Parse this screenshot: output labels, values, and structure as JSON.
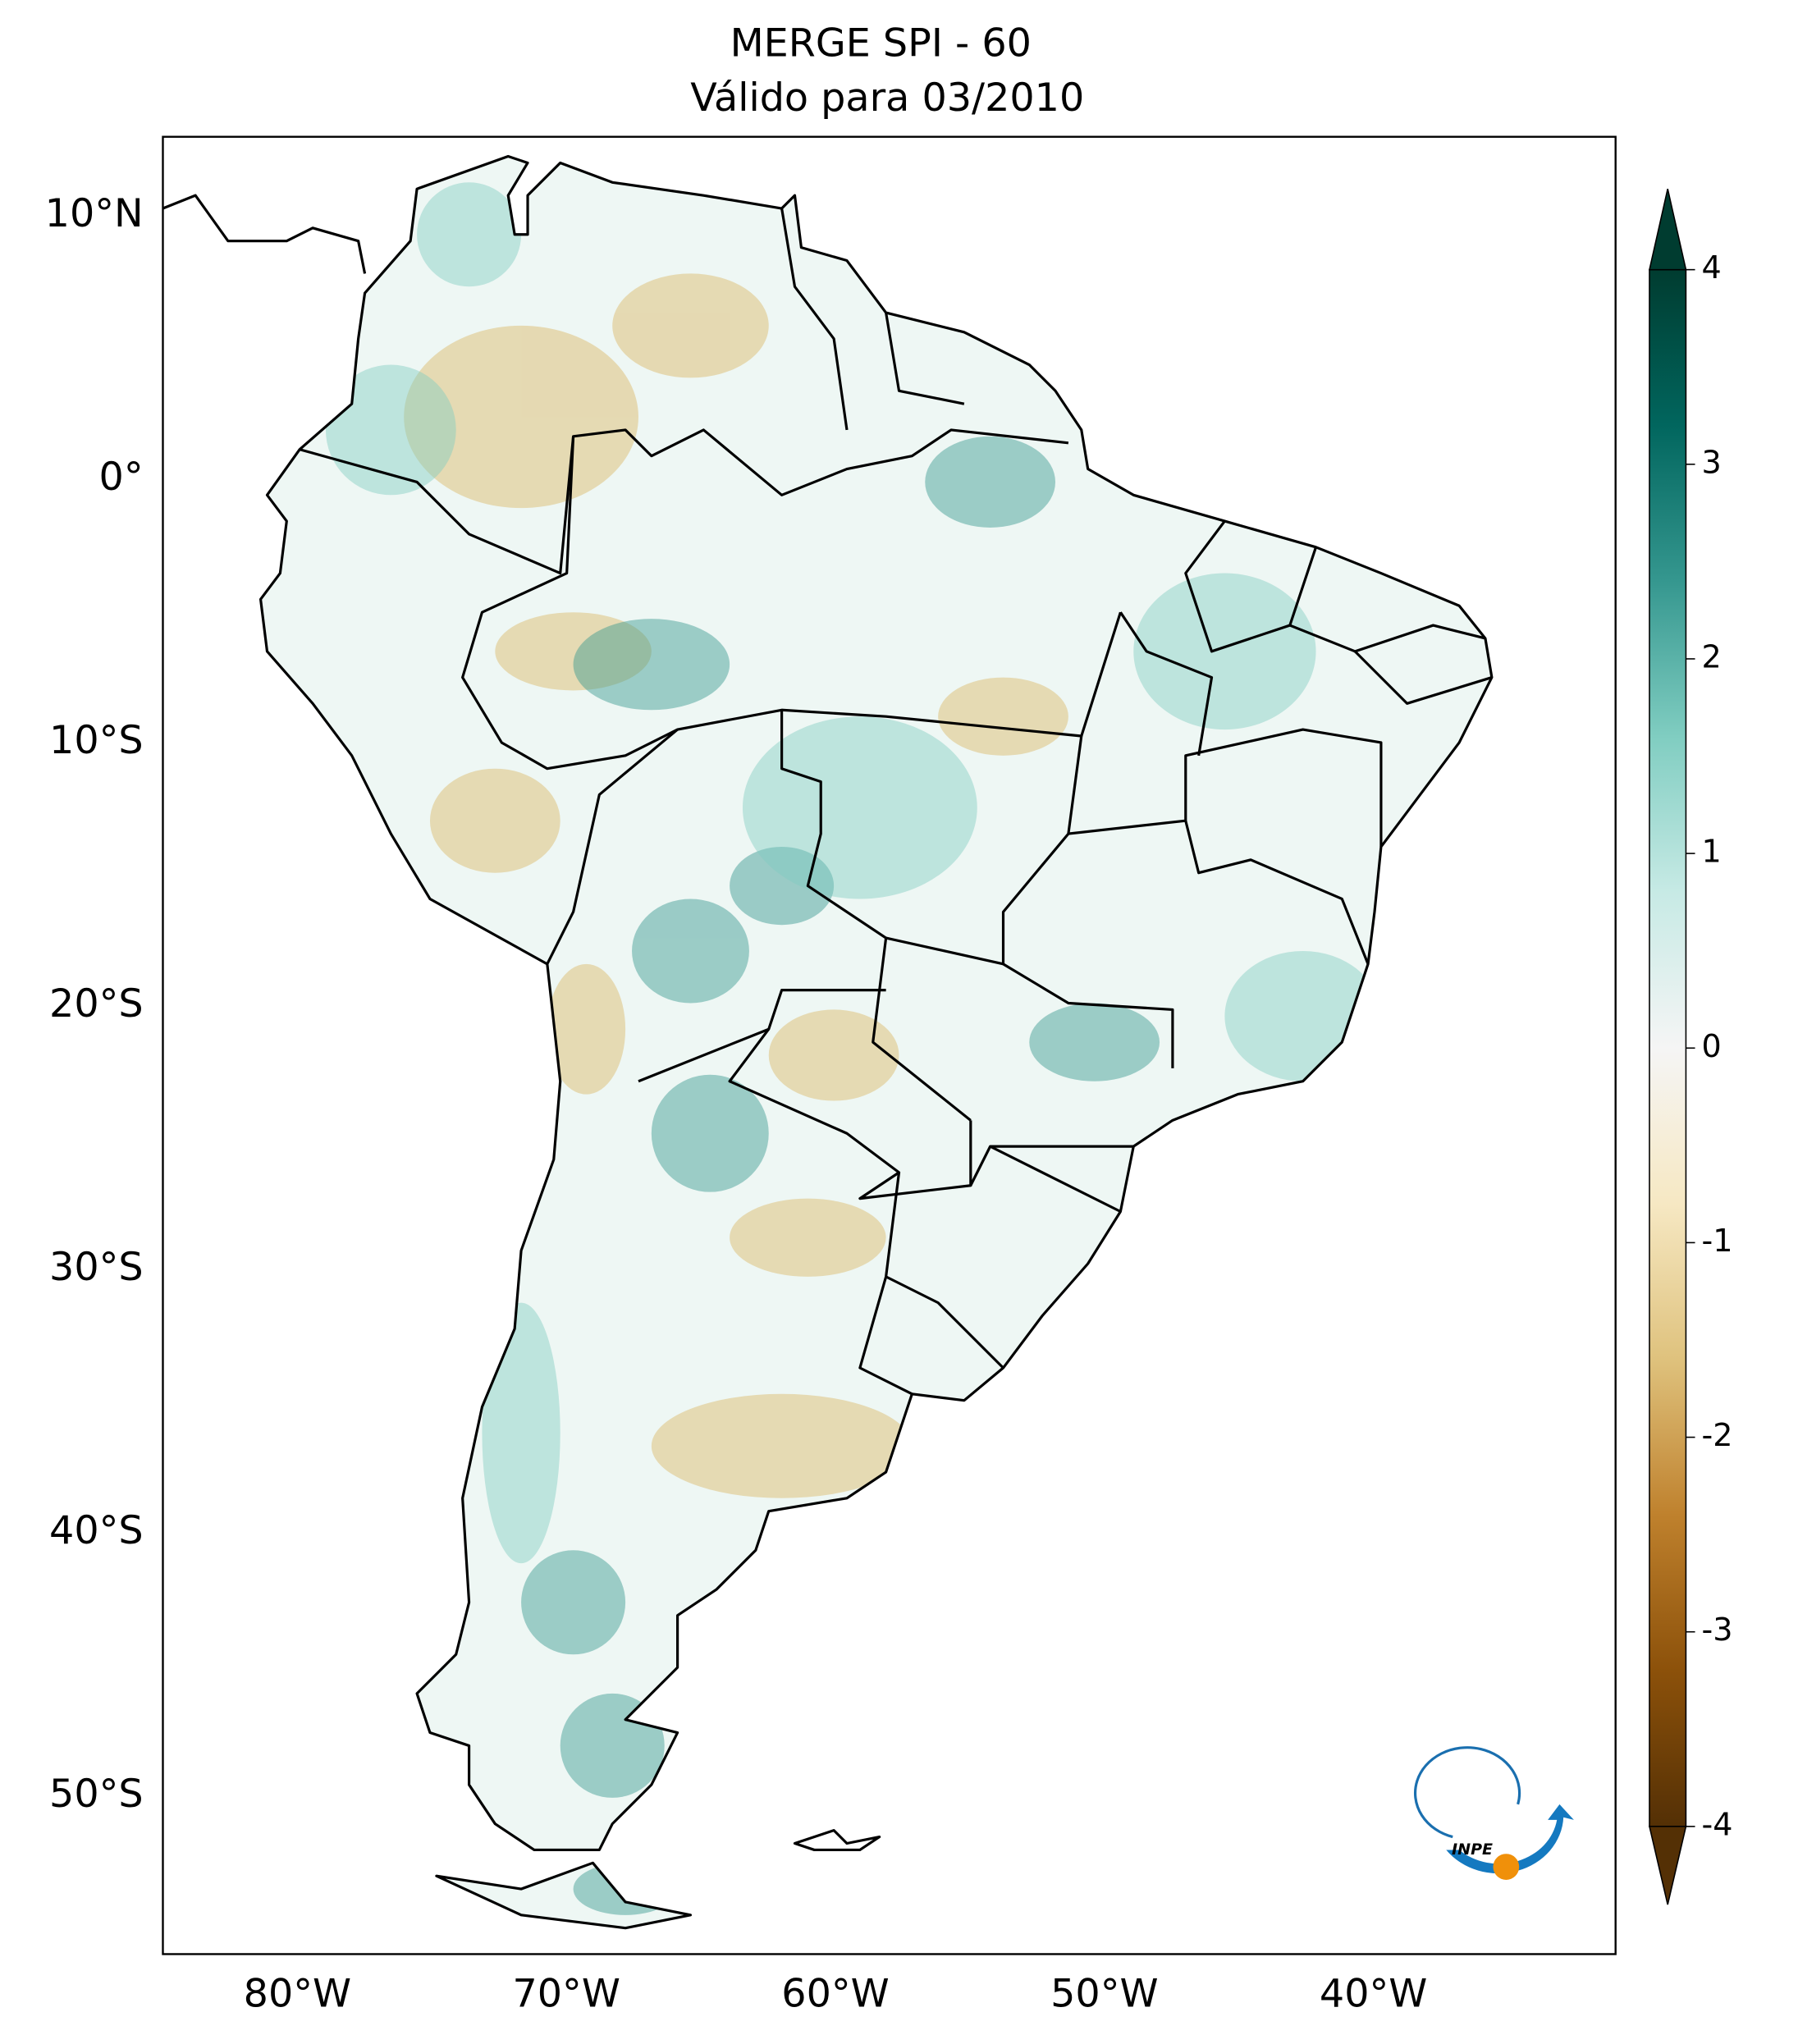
{
  "title": "MERGE   SPI - 60",
  "subtitle": "Válido para 03/2010",
  "map": {
    "xlim": [
      -85,
      -31
    ],
    "ylim": [
      -56,
      13
    ],
    "xticks": [
      {
        "value": -80,
        "label": "80°W"
      },
      {
        "value": -70,
        "label": "70°W"
      },
      {
        "value": -60,
        "label": "60°W"
      },
      {
        "value": -50,
        "label": "50°W"
      },
      {
        "value": -40,
        "label": "40°W"
      }
    ],
    "yticks": [
      {
        "value": 10,
        "label": "10°N"
      },
      {
        "value": 0,
        "label": "0°"
      },
      {
        "value": -10,
        "label": "10°S"
      },
      {
        "value": -20,
        "label": "20°S"
      },
      {
        "value": -30,
        "label": "30°S"
      },
      {
        "value": -40,
        "label": "40°S"
      },
      {
        "value": -50,
        "label": "50°S"
      }
    ]
  },
  "colorbar": {
    "lim": [
      -4,
      4
    ],
    "ticks": [
      -4,
      -3,
      -2,
      -1,
      0,
      1,
      2,
      3,
      4
    ],
    "colors": [
      "#543005",
      "#8c510a",
      "#bf812d",
      "#dfc27d",
      "#f6e8c3",
      "#f5f5f5",
      "#c7eae5",
      "#80cdc1",
      "#35978f",
      "#01665e",
      "#003c30"
    ]
  },
  "logo": "INPE"
}
